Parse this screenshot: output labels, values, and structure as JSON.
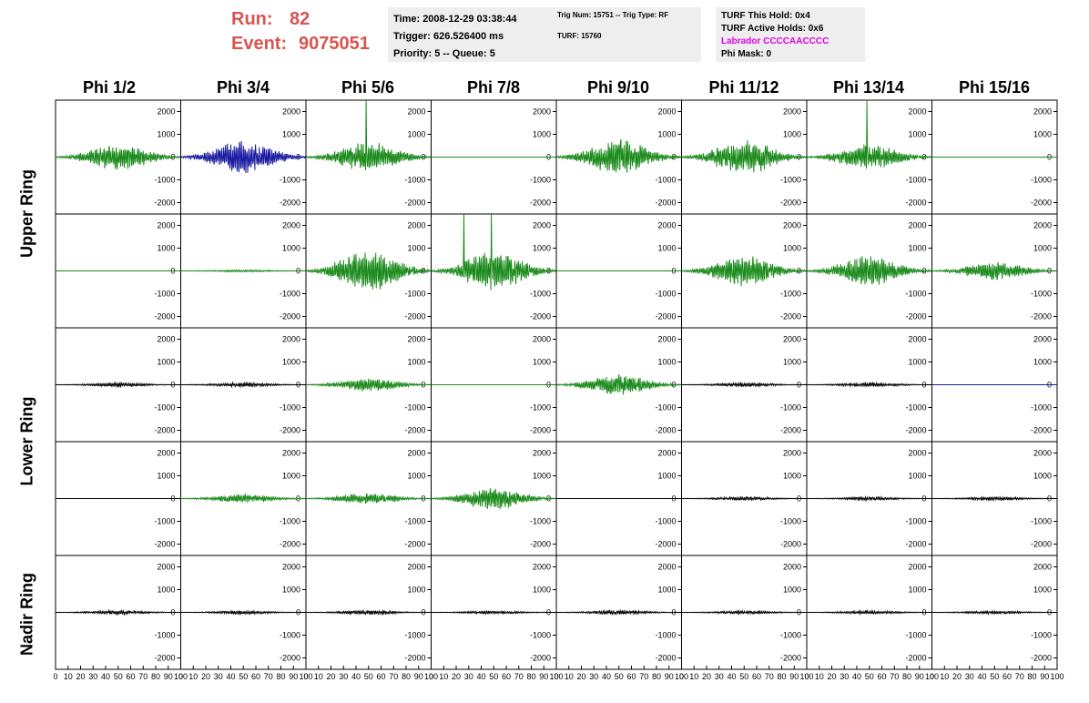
{
  "header": {
    "run_label": "Run:",
    "run_value": "82",
    "event_label": "Event:",
    "event_value": "9075051"
  },
  "time_box": {
    "time": "Time: 2008-12-29 03:38:44",
    "trigger": "Trigger: 626.526400 ms",
    "priority": "Priority: 5 -- Queue: 5"
  },
  "trig_box": {
    "trig": "Trig Num: 15751 -- Trig Type: RF",
    "turf": "TURF: 15760"
  },
  "turf_box": {
    "this_hold": "TURF This Hold: 0x4",
    "active_holds": "TURF Active Holds: 0x6",
    "labrador": "Labrador CCCCAACCCC",
    "phi_mask": "Phi Mask: 0"
  },
  "phi_labels": [
    "Phi 1/2",
    "Phi 3/4",
    "Phi 5/6",
    "Phi 7/8",
    "Phi 9/10",
    "Phi 11/12",
    "Phi 13/14",
    "Phi 15/16"
  ],
  "ring_labels": {
    "upper": "Upper Ring",
    "lower": "Lower Ring",
    "nadir": "Nadir Ring"
  },
  "colors": {
    "green": "#1a8a1a",
    "blue": "#1a1aa0",
    "black": "#000000",
    "run_text": "#d9534f",
    "labrador": "#e000e0"
  },
  "chart_data": {
    "type": "line",
    "rows": 5,
    "cols": 8,
    "ylim": [
      -2500,
      2500
    ],
    "xlim": [
      0,
      100
    ],
    "y_ticks": [
      "2000",
      "1000",
      "0",
      "-1000",
      "-2000"
    ],
    "y_tick_values": [
      2000,
      1000,
      0,
      -1000,
      -2000
    ],
    "x_tick_labels": [
      "0",
      "10",
      "20",
      "30",
      "40",
      "50",
      "60",
      "70",
      "80",
      "90",
      "100"
    ],
    "panels": [
      [
        {
          "color": "green",
          "amp": 600,
          "spike": 0
        },
        {
          "color": "blue",
          "amp": 800,
          "spike": 0
        },
        {
          "color": "green",
          "amp": 700,
          "spike": 2600
        },
        {
          "color": "green",
          "amp": 0,
          "spike": 0
        },
        {
          "color": "green",
          "amp": 800,
          "spike": 0
        },
        {
          "color": "green",
          "amp": 800,
          "spike": 0
        },
        {
          "color": "green",
          "amp": 600,
          "spike": 2600
        },
        {
          "color": "green",
          "amp": 0,
          "spike": 0
        }
      ],
      [
        {
          "color": "green",
          "amp": 0,
          "spike": 0
        },
        {
          "color": "green",
          "amp": 50,
          "spike": 0
        },
        {
          "color": "green",
          "amp": 1000,
          "spike": 0
        },
        {
          "color": "green",
          "amp": 900,
          "spike": 2600
        },
        {
          "color": "green",
          "amp": 0,
          "spike": 0
        },
        {
          "color": "green",
          "amp": 700,
          "spike": 0
        },
        {
          "color": "green",
          "amp": 700,
          "spike": 0
        },
        {
          "color": "green",
          "amp": 400,
          "spike": 0
        }
      ],
      [
        {
          "color": "black",
          "amp": 100,
          "spike": 0
        },
        {
          "color": "black",
          "amp": 100,
          "spike": 0
        },
        {
          "color": "green",
          "amp": 300,
          "spike": 0
        },
        {
          "color": "green",
          "amp": 0,
          "spike": 0
        },
        {
          "color": "green",
          "amp": 500,
          "spike": 0
        },
        {
          "color": "black",
          "amp": 100,
          "spike": 0
        },
        {
          "color": "black",
          "amp": 100,
          "spike": 0
        },
        {
          "color": "blue",
          "amp": 0,
          "spike": 0
        }
      ],
      [
        {
          "color": "black",
          "amp": 0,
          "spike": 0
        },
        {
          "color": "green",
          "amp": 200,
          "spike": 0
        },
        {
          "color": "green",
          "amp": 250,
          "spike": 0
        },
        {
          "color": "green",
          "amp": 500,
          "spike": 0
        },
        {
          "color": "black",
          "amp": 0,
          "spike": 0
        },
        {
          "color": "black",
          "amp": 80,
          "spike": 0
        },
        {
          "color": "black",
          "amp": 80,
          "spike": 0
        },
        {
          "color": "black",
          "amp": 80,
          "spike": 0
        }
      ],
      [
        {
          "color": "black",
          "amp": 100,
          "spike": 0
        },
        {
          "color": "black",
          "amp": 80,
          "spike": 0
        },
        {
          "color": "black",
          "amp": 100,
          "spike": 0
        },
        {
          "color": "black",
          "amp": 80,
          "spike": 0
        },
        {
          "color": "black",
          "amp": 100,
          "spike": 0
        },
        {
          "color": "black",
          "amp": 80,
          "spike": 0
        },
        {
          "color": "black",
          "amp": 80,
          "spike": 0
        },
        {
          "color": "black",
          "amp": 80,
          "spike": 0
        }
      ]
    ]
  }
}
